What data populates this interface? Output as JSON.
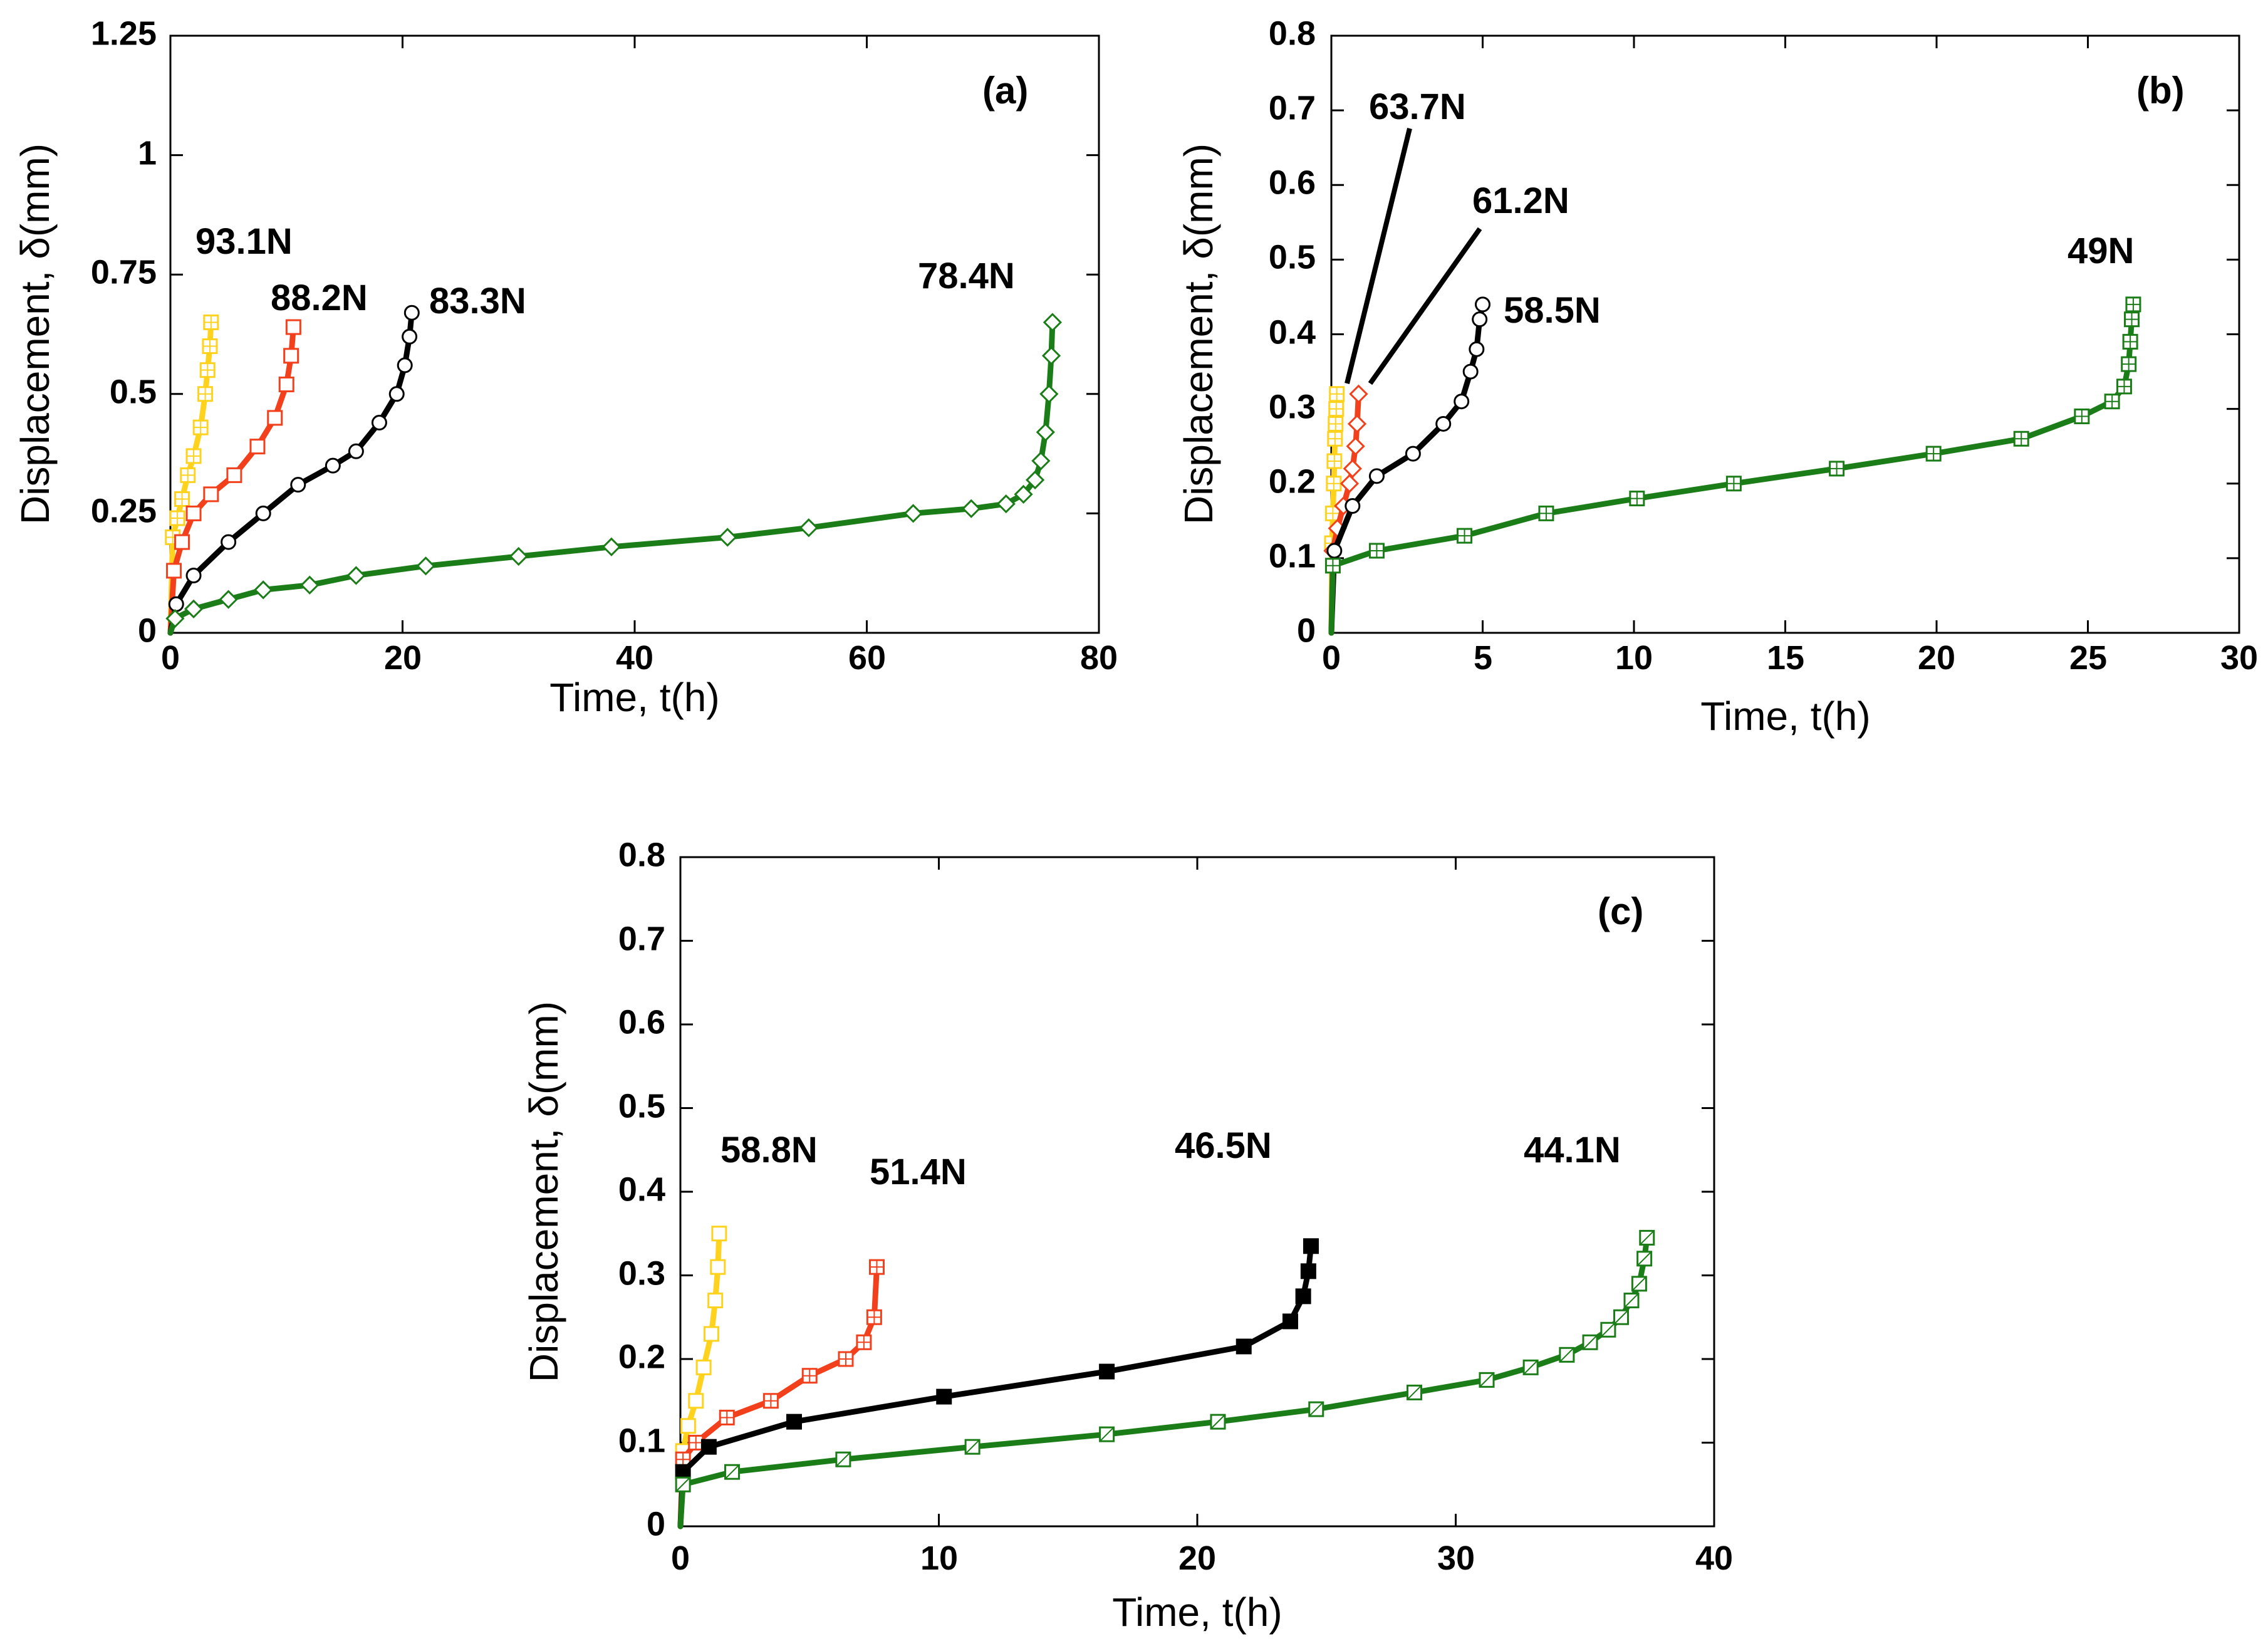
{
  "chart_data": [
    {
      "type": "line",
      "panel": "(a)",
      "xlabel": "Time, t(h)",
      "ylabel": "Displacement, δ(mm)",
      "xlim": [
        0,
        80
      ],
      "ylim": [
        0,
        1.25
      ],
      "xticks": [
        "0",
        "20",
        "40",
        "60",
        "80"
      ],
      "yticks": [
        "0",
        "0.25",
        "0.5",
        "0.75",
        "1",
        "1.25"
      ],
      "series": [
        {
          "name": "93.1N",
          "color": "#ffd21e",
          "marker": "square-plus",
          "x": [
            0,
            0.2,
            0.6,
            1.0,
            1.5,
            2.0,
            2.6,
            3.0,
            3.2,
            3.4,
            3.5
          ],
          "y": [
            0,
            0.2,
            0.24,
            0.28,
            0.33,
            0.37,
            0.43,
            0.5,
            0.55,
            0.6,
            0.65
          ]
        },
        {
          "name": "88.2N",
          "color": "#f2401c",
          "marker": "square",
          "x": [
            0,
            0.3,
            1.0,
            2.0,
            3.5,
            5.5,
            7.5,
            9.0,
            10.0,
            10.4,
            10.6
          ],
          "y": [
            0,
            0.13,
            0.19,
            0.25,
            0.29,
            0.33,
            0.39,
            0.45,
            0.52,
            0.58,
            0.64
          ]
        },
        {
          "name": "83.3N",
          "color": "#000000",
          "marker": "circle",
          "x": [
            0,
            0.5,
            2,
            5,
            8,
            11,
            14,
            16,
            18,
            19.5,
            20.2,
            20.6,
            20.8
          ],
          "y": [
            0,
            0.06,
            0.12,
            0.19,
            0.25,
            0.31,
            0.35,
            0.38,
            0.44,
            0.5,
            0.56,
            0.62,
            0.67
          ]
        },
        {
          "name": "78.4N",
          "color": "#1b7d18",
          "marker": "diamond",
          "x": [
            0,
            0.4,
            2,
            5,
            8,
            12,
            16,
            22,
            30,
            38,
            48,
            55,
            64,
            69,
            72,
            73.5,
            74.5,
            75,
            75.4,
            75.7,
            75.9,
            76.0
          ],
          "y": [
            0,
            0.03,
            0.05,
            0.07,
            0.09,
            0.1,
            0.12,
            0.14,
            0.16,
            0.18,
            0.2,
            0.22,
            0.25,
            0.26,
            0.27,
            0.29,
            0.32,
            0.36,
            0.42,
            0.5,
            0.58,
            0.65
          ]
        }
      ],
      "annotations": [
        "(a)",
        "93.1N",
        "88.2N",
        "83.3N",
        "78.4N"
      ]
    },
    {
      "type": "line",
      "panel": "(b)",
      "xlabel": "Time, t(h)",
      "ylabel": "Displacement, δ(mm)",
      "xlim": [
        0,
        30
      ],
      "ylim": [
        0,
        0.8
      ],
      "xticks": [
        "0",
        "5",
        "10",
        "15",
        "20",
        "25",
        "30"
      ],
      "yticks": [
        "0",
        "0.1",
        "0.2",
        "0.3",
        "0.4",
        "0.5",
        "0.6",
        "0.7",
        "0.8"
      ],
      "series": [
        {
          "name": "63.7N",
          "color": "#ffd21e",
          "marker": "square-plus",
          "x": [
            0,
            0.02,
            0.05,
            0.08,
            0.1,
            0.12,
            0.14,
            0.16,
            0.18
          ],
          "y": [
            0,
            0.12,
            0.16,
            0.2,
            0.23,
            0.26,
            0.28,
            0.3,
            0.32
          ]
        },
        {
          "name": "61.2N",
          "color": "#f2401c",
          "marker": "diamond",
          "x": [
            0,
            0.05,
            0.2,
            0.4,
            0.6,
            0.7,
            0.8,
            0.85,
            0.9
          ],
          "y": [
            0,
            0.11,
            0.14,
            0.17,
            0.2,
            0.22,
            0.25,
            0.28,
            0.32
          ]
        },
        {
          "name": "58.5N",
          "color": "#000000",
          "marker": "circle",
          "x": [
            0,
            0.1,
            0.7,
            1.5,
            2.7,
            3.7,
            4.3,
            4.6,
            4.8,
            4.9,
            5.0
          ],
          "y": [
            0,
            0.11,
            0.17,
            0.21,
            0.24,
            0.28,
            0.31,
            0.35,
            0.38,
            0.42,
            0.44
          ]
        },
        {
          "name": "49N",
          "color": "#1b7d18",
          "marker": "square-plus",
          "x": [
            0,
            0.05,
            1.5,
            4.4,
            7.1,
            10.1,
            13.3,
            16.7,
            19.9,
            22.8,
            24.8,
            25.8,
            26.2,
            26.35,
            26.4,
            26.45,
            26.5
          ],
          "y": [
            0,
            0.09,
            0.11,
            0.13,
            0.16,
            0.18,
            0.2,
            0.22,
            0.24,
            0.26,
            0.29,
            0.31,
            0.33,
            0.36,
            0.39,
            0.42,
            0.44
          ]
        }
      ],
      "annotations": [
        "(b)",
        "63.7N",
        "61.2N",
        "58.5N",
        "49N"
      ]
    },
    {
      "type": "line",
      "panel": "(c)",
      "xlabel": "Time, t(h)",
      "ylabel": "Displacement, δ(mm)",
      "xlim": [
        0,
        40
      ],
      "ylim": [
        0,
        0.8
      ],
      "xticks": [
        "0",
        "10",
        "20",
        "30",
        "40"
      ],
      "yticks": [
        "0",
        "0.1",
        "0.2",
        "0.3",
        "0.4",
        "0.5",
        "0.6",
        "0.7",
        "0.8"
      ],
      "series": [
        {
          "name": "58.8N",
          "color": "#ffd21e",
          "marker": "square",
          "x": [
            0,
            0.1,
            0.3,
            0.6,
            0.9,
            1.2,
            1.35,
            1.45,
            1.5
          ],
          "y": [
            0,
            0.09,
            0.12,
            0.15,
            0.19,
            0.23,
            0.27,
            0.31,
            0.35
          ]
        },
        {
          "name": "51.4N",
          "color": "#f2401c",
          "marker": "square-plus",
          "x": [
            0,
            0.1,
            0.6,
            1.8,
            3.5,
            5.0,
            6.4,
            7.1,
            7.5,
            7.6
          ],
          "y": [
            0,
            0.08,
            0.1,
            0.13,
            0.15,
            0.18,
            0.2,
            0.22,
            0.25,
            0.31
          ]
        },
        {
          "name": "46.5N",
          "color": "#000000",
          "marker": "filled-square",
          "x": [
            0,
            0.1,
            1.1,
            4.4,
            10.2,
            16.5,
            21.8,
            23.6,
            24.1,
            24.3,
            24.4
          ],
          "y": [
            0,
            0.065,
            0.095,
            0.125,
            0.155,
            0.185,
            0.215,
            0.245,
            0.275,
            0.305,
            0.335
          ]
        },
        {
          "name": "44.1N",
          "color": "#1b7d18",
          "marker": "square-slash",
          "x": [
            0,
            0.1,
            2.0,
            6.3,
            11.3,
            16.5,
            20.8,
            24.6,
            28.4,
            31.2,
            32.9,
            34.3,
            35.2,
            35.9,
            36.4,
            36.8,
            37.1,
            37.3,
            37.4
          ],
          "y": [
            0,
            0.05,
            0.065,
            0.08,
            0.095,
            0.11,
            0.125,
            0.14,
            0.16,
            0.175,
            0.19,
            0.205,
            0.22,
            0.235,
            0.25,
            0.27,
            0.29,
            0.32,
            0.345
          ]
        }
      ],
      "annotations": [
        "(c)",
        "58.8N",
        "51.4N",
        "46.5N",
        "44.1N"
      ]
    }
  ]
}
